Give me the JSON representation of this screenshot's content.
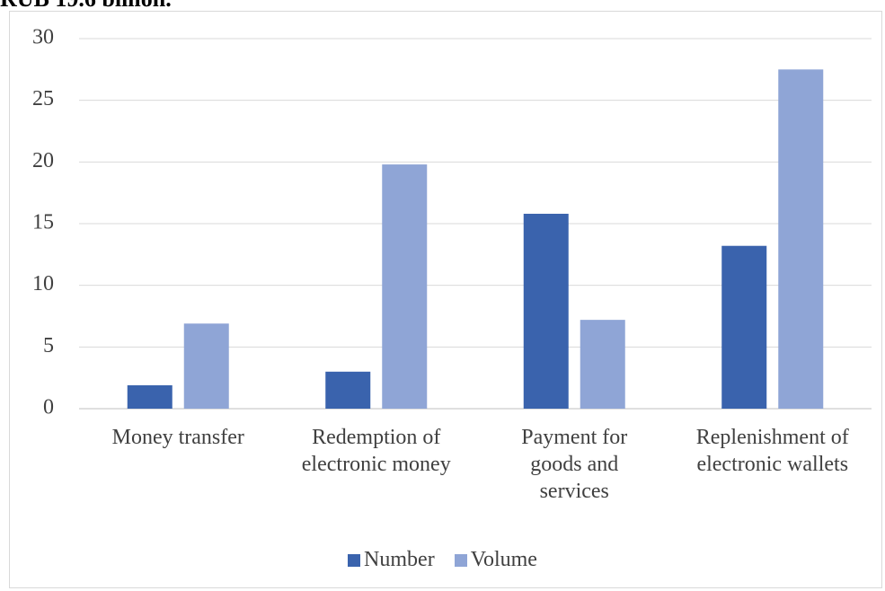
{
  "header_text": "RUB 19.6 billion.",
  "chart_data": {
    "type": "bar",
    "categories": [
      "Money transfer",
      "Redemption of electronic money",
      "Payment for goods and services",
      "Replenishment of electronic wallets"
    ],
    "series": [
      {
        "name": "Number",
        "color": "#3a63ad",
        "values": [
          1.9,
          3.0,
          15.8,
          13.2
        ]
      },
      {
        "name": "Volume",
        "color": "#8fa5d6",
        "values": [
          6.9,
          19.8,
          7.2,
          27.5
        ]
      }
    ],
    "ylim": [
      0,
      30
    ],
    "yticks": [
      0,
      5,
      10,
      15,
      20,
      25,
      30
    ],
    "grid": true,
    "legend": "bottom"
  }
}
